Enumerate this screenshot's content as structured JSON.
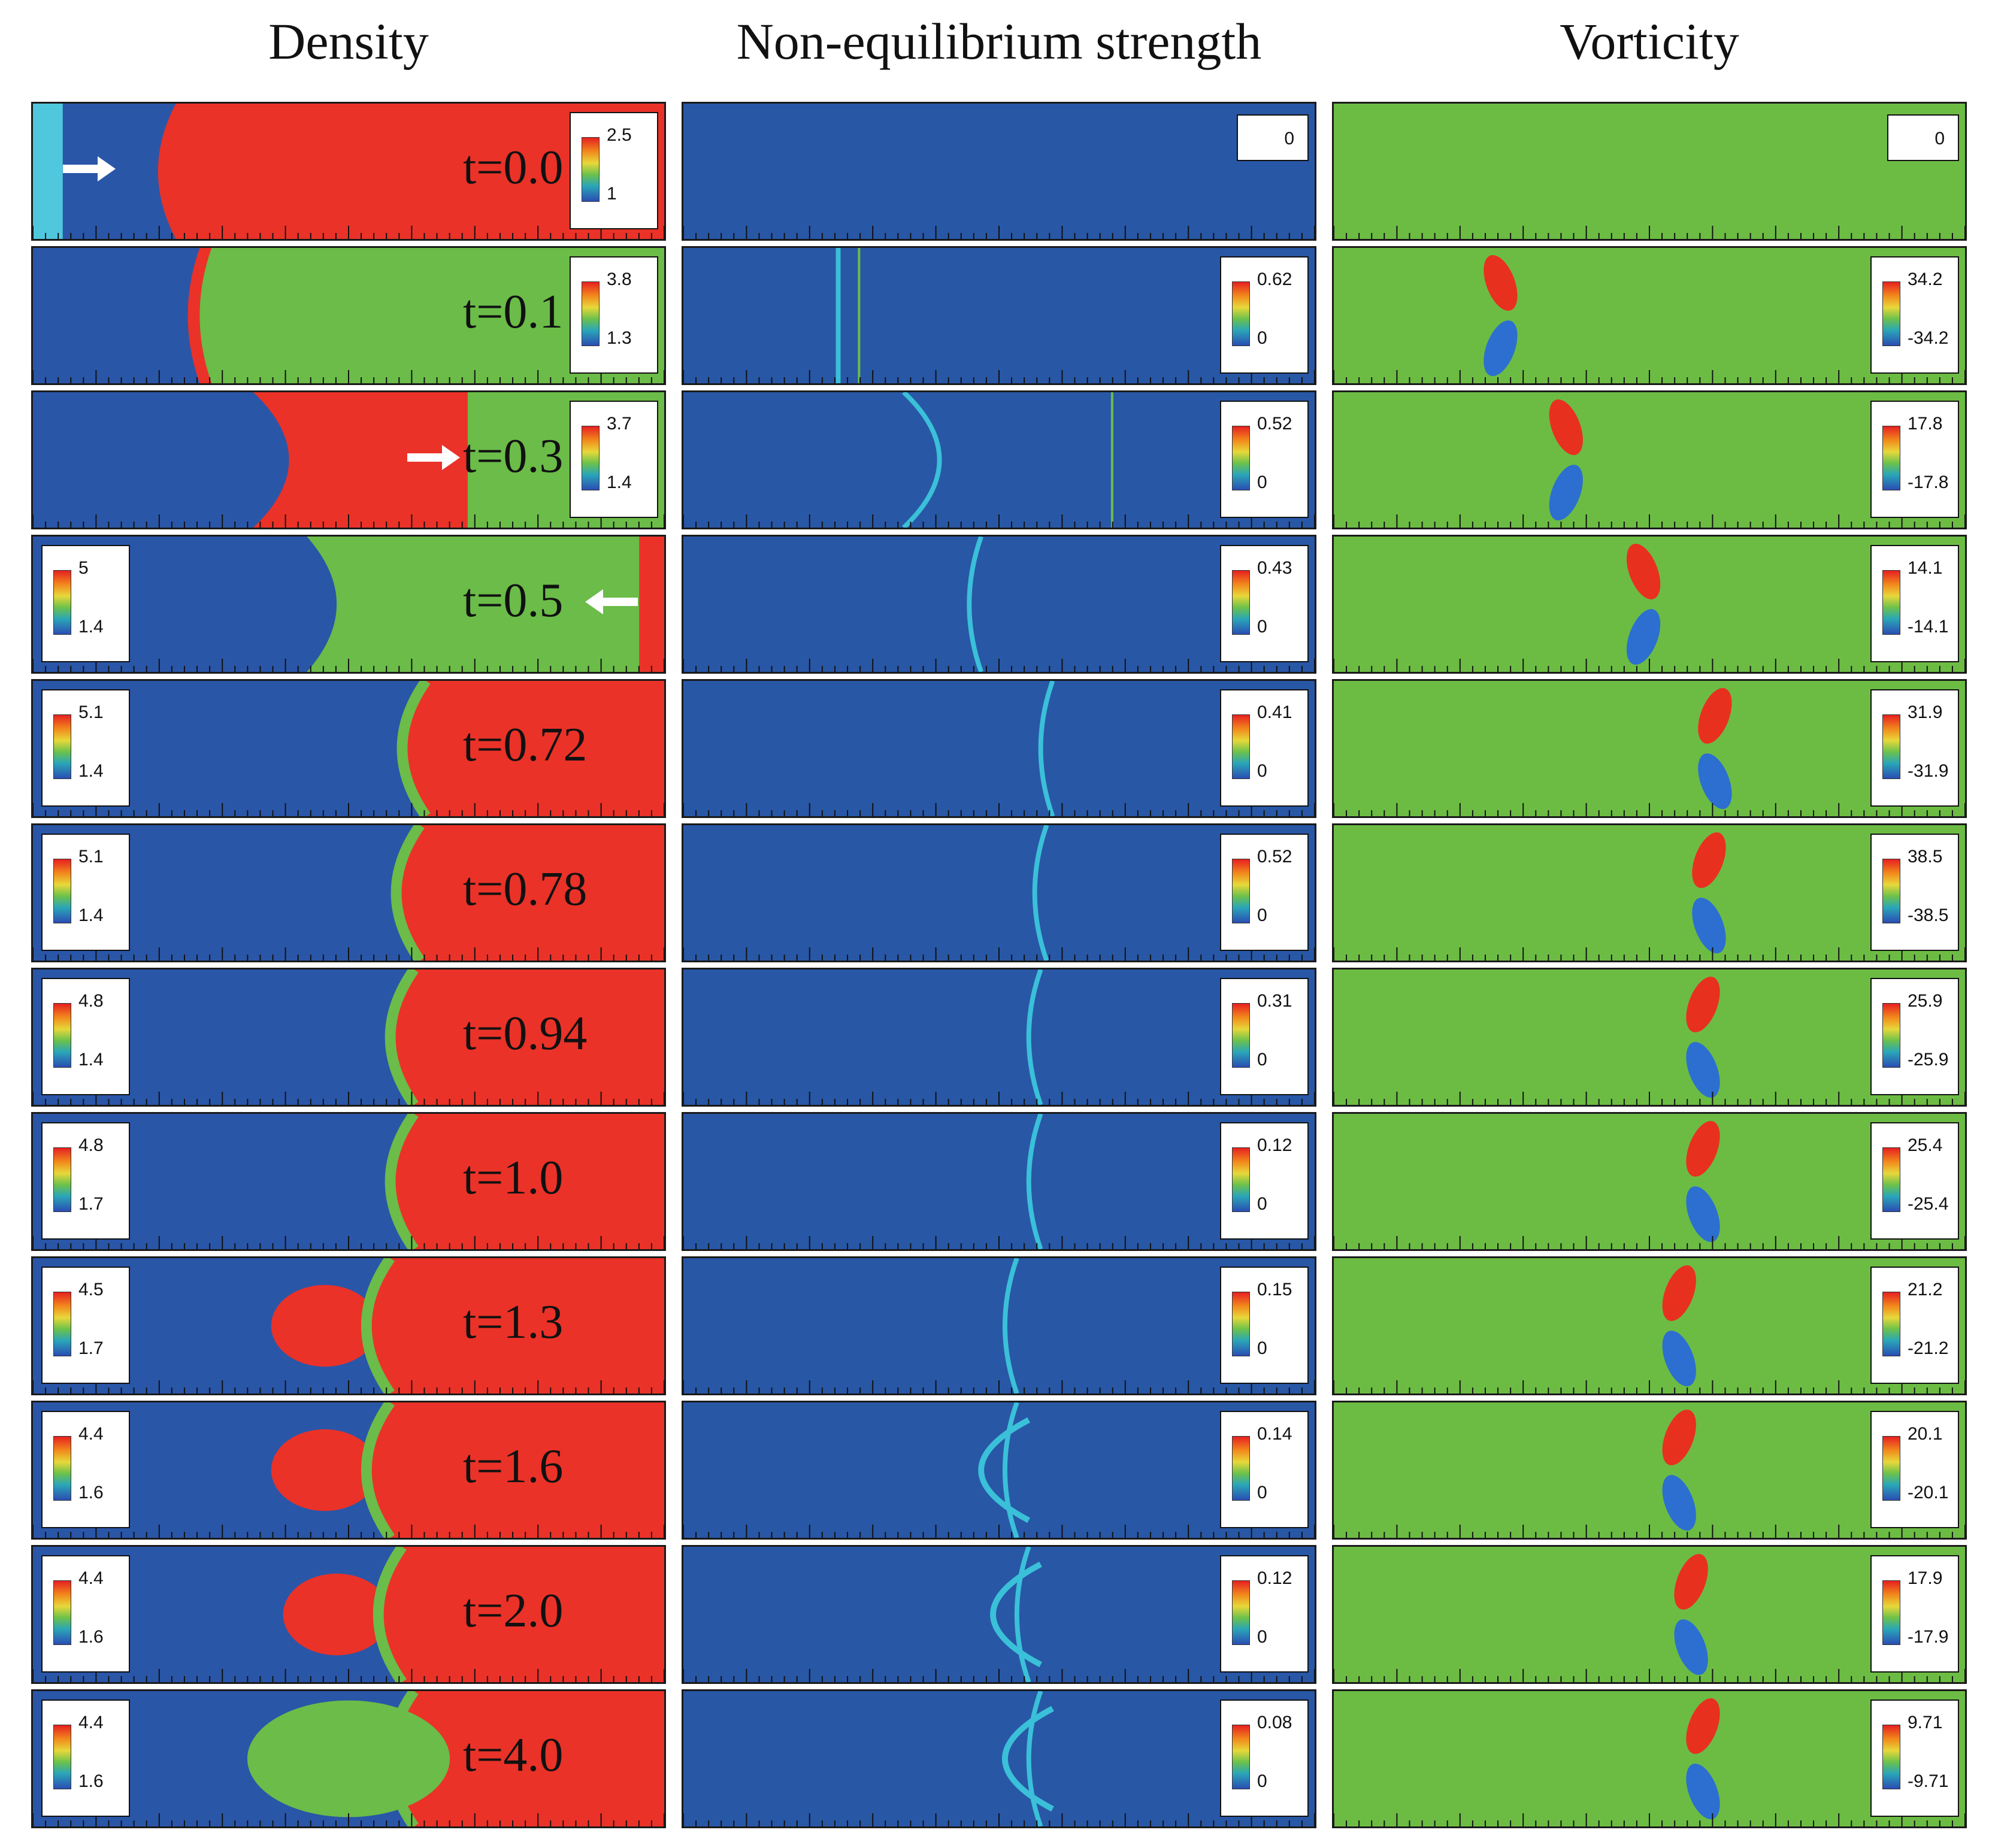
{
  "columns": [
    {
      "title": "Density"
    },
    {
      "title": "Non-equilibrium strength"
    },
    {
      "title": "Vorticity"
    }
  ],
  "colors": {
    "density_low": "#2a56a8",
    "density_high": "#ea3228",
    "density_mid": "#6bbc48",
    "density_initial_light": "#4fc8dd",
    "noneq_bg": "#2857a6",
    "noneq_feature": "#3ac0d8",
    "vort_bg": "#6cbc44",
    "vort_pos": "#e8301f",
    "vort_neg": "#2c6fd0"
  },
  "rows": [
    {
      "time": "t=0.0",
      "density": {
        "max": "2.5",
        "min": "1"
      },
      "noneq": {
        "max": "0"
      },
      "vorticity": {
        "max": "0"
      }
    },
    {
      "time": "t=0.1",
      "density": {
        "max": "3.8",
        "min": "1.3"
      },
      "noneq": {
        "max": "0.62",
        "min": "0"
      },
      "vorticity": {
        "max": "34.2",
        "min": "-34.2"
      }
    },
    {
      "time": "t=0.3",
      "density": {
        "max": "3.7",
        "min": "1.4"
      },
      "noneq": {
        "max": "0.52",
        "min": "0"
      },
      "vorticity": {
        "max": "17.8",
        "min": "-17.8"
      }
    },
    {
      "time": "t=0.5",
      "density": {
        "max": "5",
        "min": "1.4"
      },
      "noneq": {
        "max": "0.43",
        "min": "0"
      },
      "vorticity": {
        "max": "14.1",
        "min": "-14.1"
      }
    },
    {
      "time": "t=0.72",
      "density": {
        "max": "5.1",
        "min": "1.4"
      },
      "noneq": {
        "max": "0.41",
        "min": "0"
      },
      "vorticity": {
        "max": "31.9",
        "min": "-31.9"
      }
    },
    {
      "time": "t=0.78",
      "density": {
        "max": "5.1",
        "min": "1.4"
      },
      "noneq": {
        "max": "0.52",
        "min": "0"
      },
      "vorticity": {
        "max": "38.5",
        "min": "-38.5"
      }
    },
    {
      "time": "t=0.94",
      "density": {
        "max": "4.8",
        "min": "1.4"
      },
      "noneq": {
        "max": "0.31",
        "min": "0"
      },
      "vorticity": {
        "max": "25.9",
        "min": "-25.9"
      }
    },
    {
      "time": "t=1.0",
      "density": {
        "max": "4.8",
        "min": "1.7"
      },
      "noneq": {
        "max": "0.12",
        "min": "0"
      },
      "vorticity": {
        "max": "25.4",
        "min": "-25.4"
      }
    },
    {
      "time": "t=1.3",
      "density": {
        "max": "4.5",
        "min": "1.7"
      },
      "noneq": {
        "max": "0.15",
        "min": "0"
      },
      "vorticity": {
        "max": "21.2",
        "min": "-21.2"
      }
    },
    {
      "time": "t=1.6",
      "density": {
        "max": "4.4",
        "min": "1.6"
      },
      "noneq": {
        "max": "0.14",
        "min": "0"
      },
      "vorticity": {
        "max": "20.1",
        "min": "-20.1"
      }
    },
    {
      "time": "t=2.0",
      "density": {
        "max": "4.4",
        "min": "1.6"
      },
      "noneq": {
        "max": "0.12",
        "min": "0"
      },
      "vorticity": {
        "max": "17.9",
        "min": "-17.9"
      }
    },
    {
      "time": "t=4.0",
      "density": {
        "max": "4.4",
        "min": "1.6"
      },
      "noneq": {
        "max": "0.08",
        "min": "0"
      },
      "vorticity": {
        "max": "9.71",
        "min": "-9.71"
      }
    }
  ]
}
